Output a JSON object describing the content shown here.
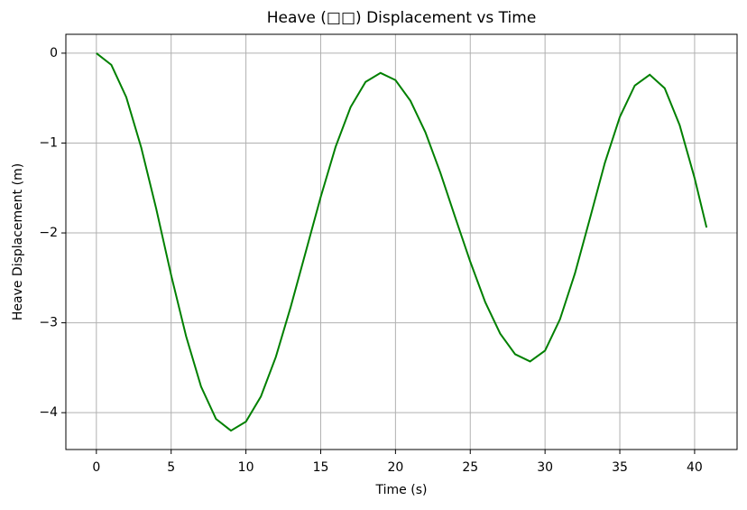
{
  "chart_data": {
    "type": "line",
    "title": "Heave (□□) Displacement vs Time",
    "xlabel": "Time (s)",
    "ylabel": "Heave Displacement (m)",
    "x": [
      0,
      1,
      2,
      3,
      4,
      5,
      6,
      7,
      8,
      9,
      10,
      11,
      12,
      13,
      14,
      15,
      16,
      17,
      18,
      19,
      20,
      21,
      22,
      23,
      24,
      25,
      26,
      27,
      28,
      29,
      30,
      31,
      32,
      33,
      34,
      35,
      36,
      37,
      38,
      39,
      40,
      40.8
    ],
    "series": [
      {
        "name": "Heave",
        "color": "#008000",
        "values": [
          0,
          -0.13,
          -0.49,
          -1.05,
          -1.73,
          -2.47,
          -3.15,
          -3.71,
          -4.07,
          -4.2,
          -4.1,
          -3.82,
          -3.38,
          -2.82,
          -2.21,
          -1.6,
          -1.04,
          -0.6,
          -0.32,
          -0.22,
          -0.3,
          -0.53,
          -0.88,
          -1.33,
          -1.83,
          -2.32,
          -2.77,
          -3.12,
          -3.35,
          -3.43,
          -3.31,
          -2.96,
          -2.45,
          -1.84,
          -1.22,
          -0.71,
          -0.36,
          -0.24,
          -0.39,
          -0.8,
          -1.39,
          -1.94
        ]
      }
    ],
    "xlim": [
      -2.04,
      42.84
    ],
    "ylim": [
      -4.41,
      0.21
    ],
    "xticks": [
      0,
      5,
      10,
      15,
      20,
      25,
      30,
      35,
      40
    ],
    "yticks": [
      0,
      {
        "value": -1,
        "label": "−1"
      },
      {
        "value": -2,
        "label": "−2"
      },
      {
        "value": -3,
        "label": "−3"
      },
      {
        "value": -4,
        "label": "−4"
      }
    ],
    "grid": true
  }
}
